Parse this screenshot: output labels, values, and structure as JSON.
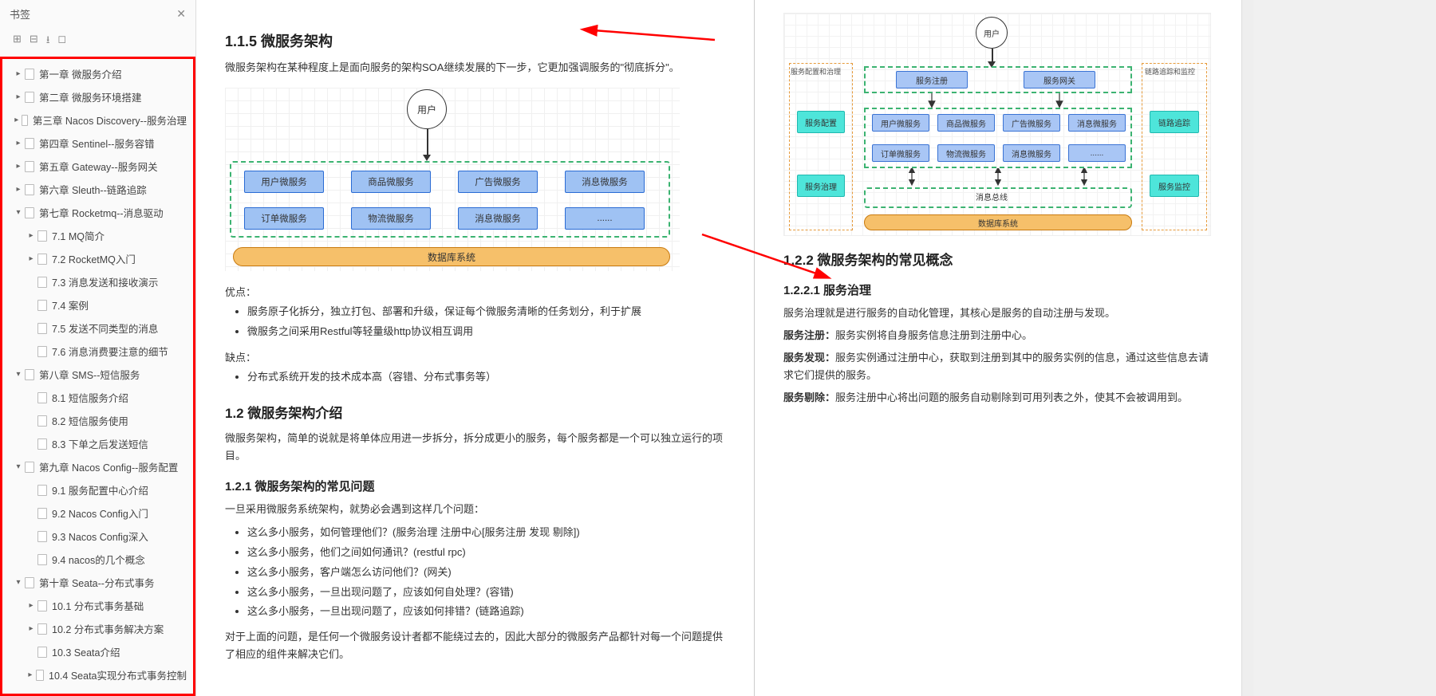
{
  "sidebar": {
    "title": "书签",
    "toolbar": [
      "⊞",
      "⊟",
      "⭳",
      "◻"
    ],
    "items": [
      {
        "level": 1,
        "expand": "▸",
        "label": "第一章 微服务介绍"
      },
      {
        "level": 1,
        "expand": "▸",
        "label": "第二章 微服务环境搭建"
      },
      {
        "level": 1,
        "expand": "▸",
        "label": "第三章 Nacos Discovery--服务治理"
      },
      {
        "level": 1,
        "expand": "▸",
        "label": "第四章 Sentinel--服务容错"
      },
      {
        "level": 1,
        "expand": "▸",
        "label": "第五章 Gateway--服务网关"
      },
      {
        "level": 1,
        "expand": "▸",
        "label": "第六章 Sleuth--链路追踪"
      },
      {
        "level": 1,
        "expand": "▾",
        "label": "第七章 Rocketmq--消息驱动"
      },
      {
        "level": 2,
        "expand": "▸",
        "label": "7.1 MQ简介"
      },
      {
        "level": 2,
        "expand": "▸",
        "label": "7.2 RocketMQ入门"
      },
      {
        "level": 2,
        "expand": "",
        "label": "7.3 消息发送和接收演示"
      },
      {
        "level": 2,
        "expand": "",
        "label": "7.4 案例"
      },
      {
        "level": 2,
        "expand": "",
        "label": "7.5 发送不同类型的消息"
      },
      {
        "level": 2,
        "expand": "",
        "label": "7.6 消息消费要注意的细节"
      },
      {
        "level": 1,
        "expand": "▾",
        "label": "第八章 SMS--短信服务"
      },
      {
        "level": 2,
        "expand": "",
        "label": "8.1 短信服务介绍"
      },
      {
        "level": 2,
        "expand": "",
        "label": "8.2 短信服务使用"
      },
      {
        "level": 2,
        "expand": "",
        "label": "8.3 下单之后发送短信"
      },
      {
        "level": 1,
        "expand": "▾",
        "label": "第九章 Nacos Config--服务配置"
      },
      {
        "level": 2,
        "expand": "",
        "label": "9.1 服务配置中心介绍"
      },
      {
        "level": 2,
        "expand": "",
        "label": "9.2 Nacos Config入门"
      },
      {
        "level": 2,
        "expand": "",
        "label": "9.3 Nacos Config深入"
      },
      {
        "level": 2,
        "expand": "",
        "label": "9.4 nacos的几个概念"
      },
      {
        "level": 1,
        "expand": "▾",
        "label": "第十章 Seata--分布式事务"
      },
      {
        "level": 2,
        "expand": "▸",
        "label": "10.1 分布式事务基础"
      },
      {
        "level": 2,
        "expand": "▸",
        "label": "10.2 分布式事务解决方案"
      },
      {
        "level": 2,
        "expand": "",
        "label": "10.3 Seata介绍"
      },
      {
        "level": 2,
        "expand": "▸",
        "label": "10.4 Seata实现分布式事务控制"
      }
    ]
  },
  "left": {
    "h_115": "1.1.5 微服务架构",
    "p_115": "微服务架构在某种程度上是面向服务的架构SOA继续发展的下一步，它更加强调服务的\"彻底拆分\"。",
    "dia1": {
      "user": "用户",
      "group_border": "#3cb371",
      "box_fill": "#9fc2f3",
      "box_border": "#2a6bd4",
      "db_fill": "#f6c06a",
      "db_border": "#c97a0e",
      "row1": [
        "用户微服务",
        "商品微服务",
        "广告微服务",
        "消息微服务"
      ],
      "row2": [
        "订单微服务",
        "物流微服务",
        "消息微服务",
        "......"
      ],
      "db": "数据库系统"
    },
    "adv_label": "优点：",
    "adv": [
      "服务原子化拆分，独立打包、部署和升级，保证每个微服务清晰的任务划分，利于扩展",
      "微服务之间采用Restful等轻量级http协议相互调用"
    ],
    "dis_label": "缺点：",
    "dis": [
      "分布式系统开发的技术成本高（容错、分布式事务等）"
    ],
    "h_12": "1.2 微服务架构介绍",
    "p_12": "微服务架构，简单的说就是将单体应用进一步拆分，拆分成更小的服务，每个服务都是一个可以独立运行的项目。",
    "h_121": "1.2.1 微服务架构的常见问题",
    "p_121": "一旦采用微服务系统架构，就势必会遇到这样几个问题：",
    "q": [
      "这么多小服务，如何管理他们？(服务治理 注册中心[服务注册 发现 剔除])",
      "这么多小服务，他们之间如何通讯？(restful rpc)",
      "这么多小服务，客户端怎么访问他们？(网关)",
      "这么多小服务，一旦出现问题了，应该如何自处理？(容错)",
      "这么多小服务，一旦出现问题了，应该如何排错？(链路追踪)"
    ],
    "p_end": "对于上面的问题，是任何一个微服务设计者都不能绕过去的，因此大部分的微服务产品都针对每一个问题提供了相应的组件来解决它们。"
  },
  "right": {
    "dia2": {
      "user": "用户",
      "side_left_title": "服务配置和治理",
      "side_right_title": "链路追踪和监控",
      "cyan": [
        "服务配置",
        "服务治理",
        "链路追踪",
        "服务监控"
      ],
      "reg": [
        "服务注册",
        "服务网关"
      ],
      "row1": [
        "用户微服务",
        "商品微服务",
        "广告微服务",
        "消息微服务"
      ],
      "row2": [
        "订单微服务",
        "物流微服务",
        "消息微服务",
        "......"
      ],
      "msgbus": "消息总线",
      "db": "数据库系统",
      "cyan_fill": "#4ee5da",
      "cyan_border": "#1fb8af"
    },
    "h_122": "1.2.2 微服务架构的常见概念",
    "h_1221": "1.2.2.1 服务治理",
    "p_gov": "服务治理就是进行服务的自动化管理，其核心是服务的自动注册与发现。",
    "b1_label": "服务注册：",
    "b1_text": "服务实例将自身服务信息注册到注册中心。",
    "b2_label": "服务发现：",
    "b2_text": "服务实例通过注册中心，获取到注册到其中的服务实例的信息，通过这些信息去请求它们提供的服务。",
    "b3_label": "服务剔除：",
    "b3_text": "服务注册中心将出问题的服务自动剔除到可用列表之外，使其不会被调用到。"
  },
  "arrows": {
    "color": "#f00"
  }
}
